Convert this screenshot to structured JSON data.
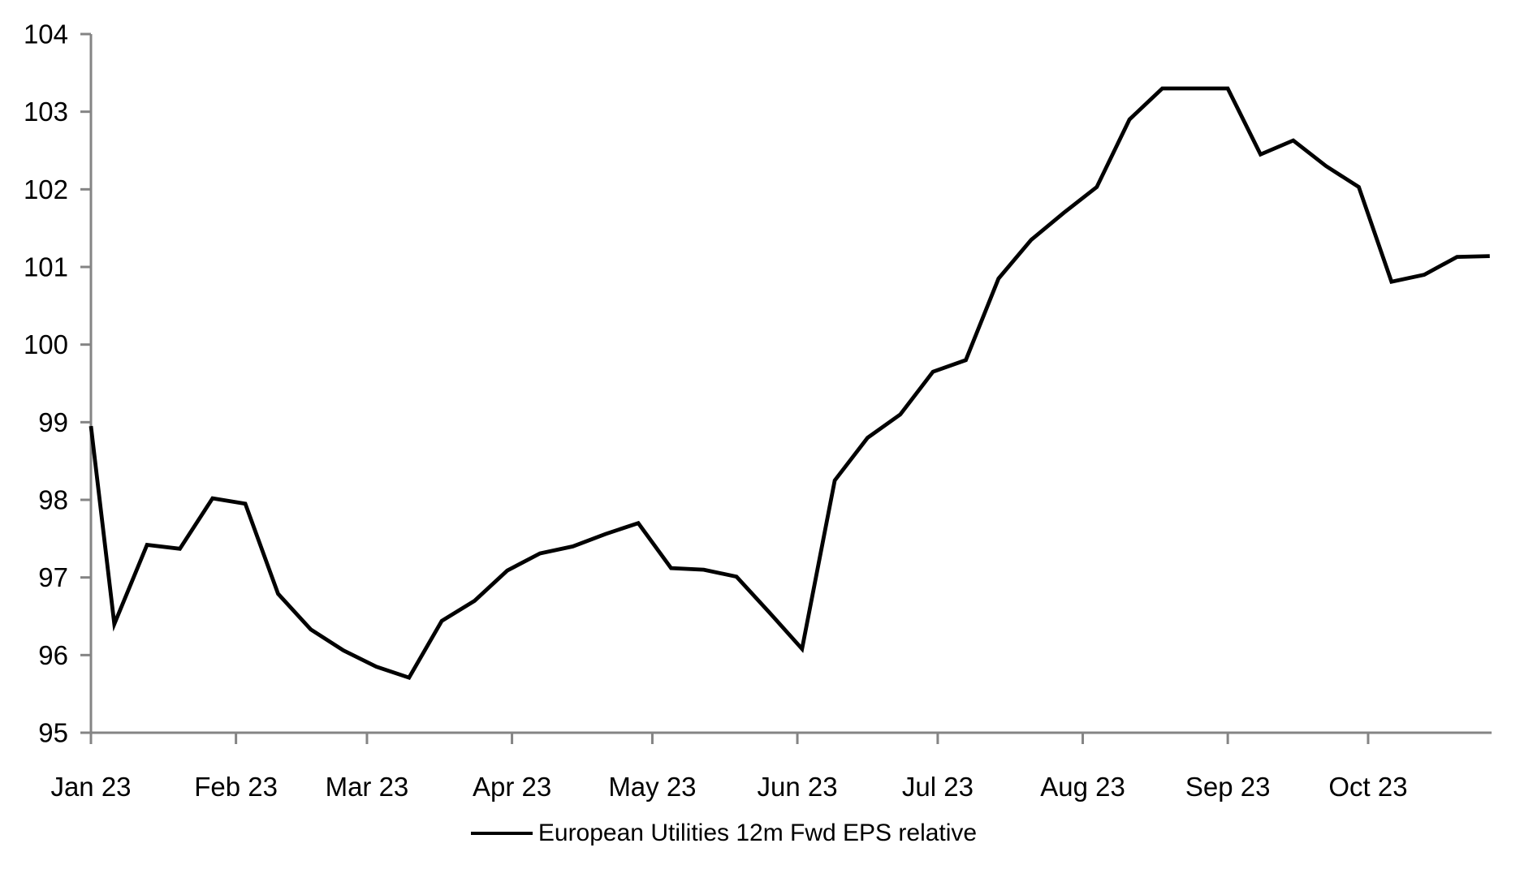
{
  "chart_data": {
    "type": "line",
    "title": "",
    "legend_position": "bottom-center",
    "grid": false,
    "colors": {
      "line": "#000000",
      "axis": "#848484",
      "text": "#000000",
      "background": "#ffffff"
    },
    "y_axis": {
      "min": 95,
      "max": 104,
      "step": 1,
      "tick_labels": [
        "95",
        "96",
        "97",
        "98",
        "99",
        "100",
        "101",
        "102",
        "103",
        "104"
      ]
    },
    "x_axis": {
      "unit": "days since 1 Jan 2023, weekly samples",
      "axis_end_day": 299.4,
      "ticks": [
        {
          "label": "Jan 23",
          "day": 0
        },
        {
          "label": "Feb 23",
          "day": 31
        },
        {
          "label": "Mar 23",
          "day": 59
        },
        {
          "label": "Apr 23",
          "day": 90
        },
        {
          "label": "May 23",
          "day": 120
        },
        {
          "label": "Jun 23",
          "day": 151
        },
        {
          "label": "Jul 23",
          "day": 181
        },
        {
          "label": "Aug 23",
          "day": 212
        },
        {
          "label": "Sep 23",
          "day": 243
        },
        {
          "label": "Oct 23",
          "day": 273
        }
      ]
    },
    "series": [
      {
        "name": "European Utilities 12m Fwd EPS relative",
        "color": "#000000",
        "points": [
          {
            "date": "01 Jan 23",
            "day": 0,
            "value": 98.95
          },
          {
            "date": "06 Jan 23",
            "day": 5,
            "value": 96.4
          },
          {
            "date": "13 Jan 23",
            "day": 12,
            "value": 97.42
          },
          {
            "date": "20 Jan 23",
            "day": 19,
            "value": 97.37
          },
          {
            "date": "27 Jan 23",
            "day": 26,
            "value": 98.02
          },
          {
            "date": "03 Feb 23",
            "day": 33,
            "value": 97.95
          },
          {
            "date": "10 Feb 23",
            "day": 40,
            "value": 96.79
          },
          {
            "date": "17 Feb 23",
            "day": 47,
            "value": 96.33
          },
          {
            "date": "24 Feb 23",
            "day": 54,
            "value": 96.06
          },
          {
            "date": "03 Mar 23",
            "day": 61,
            "value": 95.85
          },
          {
            "date": "10 Mar 23",
            "day": 68,
            "value": 95.71
          },
          {
            "date": "17 Mar 23",
            "day": 75,
            "value": 96.44
          },
          {
            "date": "24 Mar 23",
            "day": 82,
            "value": 96.7
          },
          {
            "date": "31 Mar 23",
            "day": 89,
            "value": 97.09
          },
          {
            "date": "07 Apr 23",
            "day": 96,
            "value": 97.31
          },
          {
            "date": "14 Apr 23",
            "day": 103,
            "value": 97.4
          },
          {
            "date": "21 Apr 23",
            "day": 110,
            "value": 97.56
          },
          {
            "date": "28 Apr 23",
            "day": 117,
            "value": 97.7
          },
          {
            "date": "05 May 23",
            "day": 124,
            "value": 97.12
          },
          {
            "date": "12 May 23",
            "day": 131,
            "value": 97.1
          },
          {
            "date": "19 May 23",
            "day": 138,
            "value": 97.01
          },
          {
            "date": "26 May 23",
            "day": 145,
            "value": 96.55
          },
          {
            "date": "02 Jun 23",
            "day": 152,
            "value": 96.08
          },
          {
            "date": "09 Jun 23",
            "day": 159,
            "value": 98.25
          },
          {
            "date": "16 Jun 23",
            "day": 166,
            "value": 98.8
          },
          {
            "date": "23 Jun 23",
            "day": 173,
            "value": 99.1
          },
          {
            "date": "30 Jun 23",
            "day": 180,
            "value": 99.65
          },
          {
            "date": "07 Jul 23",
            "day": 187,
            "value": 99.8
          },
          {
            "date": "14 Jul 23",
            "day": 194,
            "value": 100.85
          },
          {
            "date": "21 Jul 23",
            "day": 201,
            "value": 101.35
          },
          {
            "date": "28 Jul 23",
            "day": 208,
            "value": 101.7
          },
          {
            "date": "04 Aug 23",
            "day": 215,
            "value": 102.03
          },
          {
            "date": "11 Aug 23",
            "day": 222,
            "value": 102.9
          },
          {
            "date": "18 Aug 23",
            "day": 229,
            "value": 103.3
          },
          {
            "date": "25 Aug 23",
            "day": 236,
            "value": 103.3
          },
          {
            "date": "01 Sep 23",
            "day": 243,
            "value": 103.3
          },
          {
            "date": "08 Sep 23",
            "day": 250,
            "value": 102.45
          },
          {
            "date": "15 Sep 23",
            "day": 257,
            "value": 102.63
          },
          {
            "date": "22 Sep 23",
            "day": 264,
            "value": 102.3
          },
          {
            "date": "29 Sep 23",
            "day": 271,
            "value": 102.03
          },
          {
            "date": "06 Oct 23",
            "day": 278,
            "value": 100.81
          },
          {
            "date": "13 Oct 23",
            "day": 285,
            "value": 100.9
          },
          {
            "date": "20 Oct 23",
            "day": 292,
            "value": 101.13
          },
          {
            "date": "27 Oct 23",
            "day": 299,
            "value": 101.14
          }
        ]
      }
    ]
  }
}
